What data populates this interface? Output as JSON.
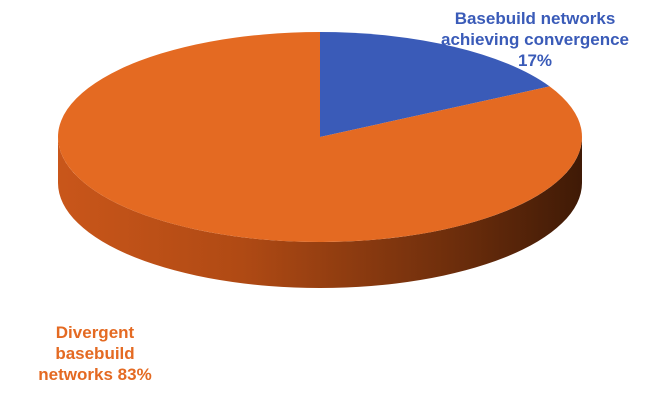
{
  "chart_data": {
    "type": "pie",
    "categories": [
      "Basebuild networks achieving convergence",
      "Divergent basebuild networks"
    ],
    "values": [
      17,
      83
    ],
    "value_labels": [
      "17%",
      "83%"
    ],
    "colors": [
      "#3a5bb8",
      "#e46a22"
    ]
  }
}
